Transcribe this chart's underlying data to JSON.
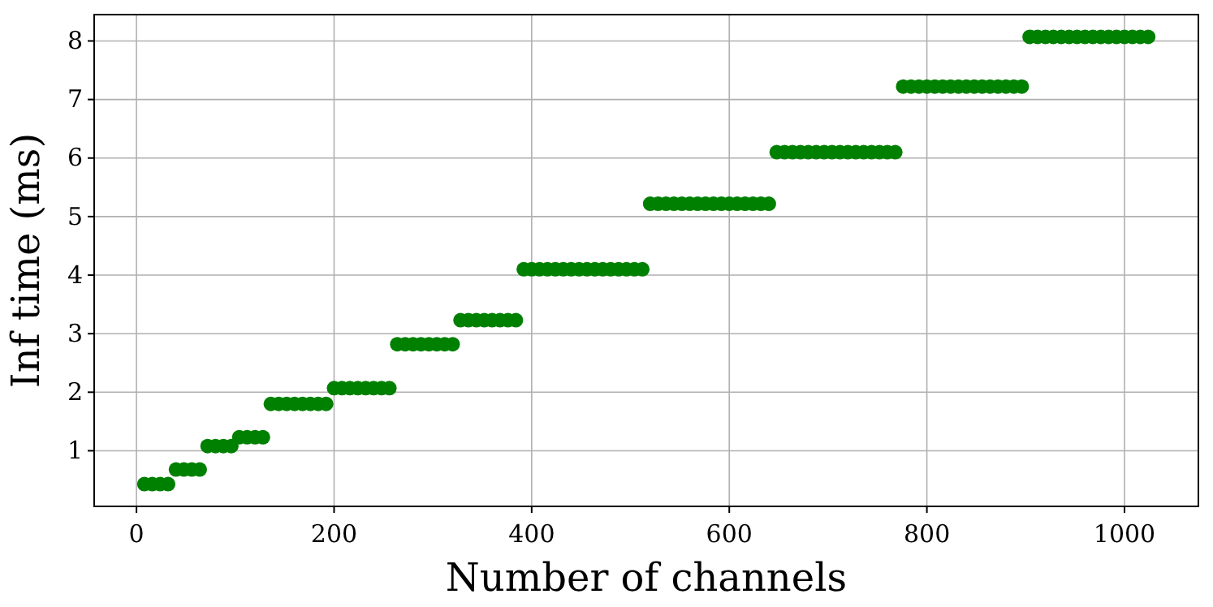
{
  "chart_data": {
    "type": "scatter",
    "xlabel": "Number of channels",
    "ylabel": "Inf time (ms)",
    "xlim": [
      -42.8,
      1074.8
    ],
    "ylim": [
      0.05,
      8.45
    ],
    "xticks": [
      0,
      200,
      400,
      600,
      800,
      1000
    ],
    "yticks": [
      1,
      2,
      3,
      4,
      5,
      6,
      7,
      8
    ],
    "grid": true,
    "marker": "circle",
    "series": [
      {
        "color": "#008000",
        "x": [
          8,
          16,
          24,
          32,
          40,
          48,
          56,
          64,
          72,
          80,
          88,
          96,
          104,
          112,
          120,
          128,
          136,
          144,
          152,
          160,
          168,
          176,
          184,
          192,
          200,
          208,
          216,
          224,
          232,
          240,
          248,
          256,
          264,
          272,
          280,
          288,
          296,
          304,
          312,
          320,
          328,
          336,
          344,
          352,
          360,
          368,
          376,
          384,
          392,
          400,
          408,
          416,
          424,
          432,
          440,
          448,
          456,
          464,
          472,
          480,
          488,
          496,
          504,
          512,
          520,
          528,
          536,
          544,
          552,
          560,
          568,
          576,
          584,
          592,
          600,
          608,
          616,
          624,
          632,
          640,
          648,
          656,
          664,
          672,
          680,
          688,
          696,
          704,
          712,
          720,
          728,
          736,
          744,
          752,
          760,
          768,
          776,
          784,
          792,
          800,
          808,
          816,
          824,
          832,
          840,
          848,
          856,
          864,
          872,
          880,
          888,
          896,
          904,
          912,
          920,
          928,
          936,
          944,
          952,
          960,
          968,
          976,
          984,
          992,
          1000,
          1008,
          1016,
          1024
        ],
        "values": [
          0.43,
          0.43,
          0.43,
          0.43,
          0.68,
          0.68,
          0.68,
          0.68,
          1.08,
          1.08,
          1.08,
          1.08,
          1.23,
          1.23,
          1.23,
          1.23,
          1.8,
          1.8,
          1.8,
          1.8,
          1.8,
          1.8,
          1.8,
          1.8,
          2.07,
          2.07,
          2.07,
          2.07,
          2.07,
          2.07,
          2.07,
          2.07,
          2.82,
          2.82,
          2.82,
          2.82,
          2.82,
          2.82,
          2.82,
          2.82,
          3.23,
          3.23,
          3.23,
          3.23,
          3.23,
          3.23,
          3.23,
          3.23,
          4.1,
          4.1,
          4.1,
          4.1,
          4.1,
          4.1,
          4.1,
          4.1,
          4.1,
          4.1,
          4.1,
          4.1,
          4.1,
          4.1,
          4.1,
          4.1,
          5.22,
          5.22,
          5.22,
          5.22,
          5.22,
          5.22,
          5.22,
          5.22,
          5.22,
          5.22,
          5.22,
          5.22,
          5.22,
          5.22,
          5.22,
          5.22,
          6.1,
          6.1,
          6.1,
          6.1,
          6.1,
          6.1,
          6.1,
          6.1,
          6.1,
          6.1,
          6.1,
          6.1,
          6.1,
          6.1,
          6.1,
          6.1,
          7.22,
          7.22,
          7.22,
          7.22,
          7.22,
          7.22,
          7.22,
          7.22,
          7.22,
          7.22,
          7.22,
          7.22,
          7.22,
          7.22,
          7.22,
          7.22,
          8.07,
          8.07,
          8.07,
          8.07,
          8.07,
          8.07,
          8.07,
          8.07,
          8.07,
          8.07,
          8.07,
          8.07,
          8.07,
          8.07,
          8.07,
          8.07
        ]
      }
    ]
  }
}
